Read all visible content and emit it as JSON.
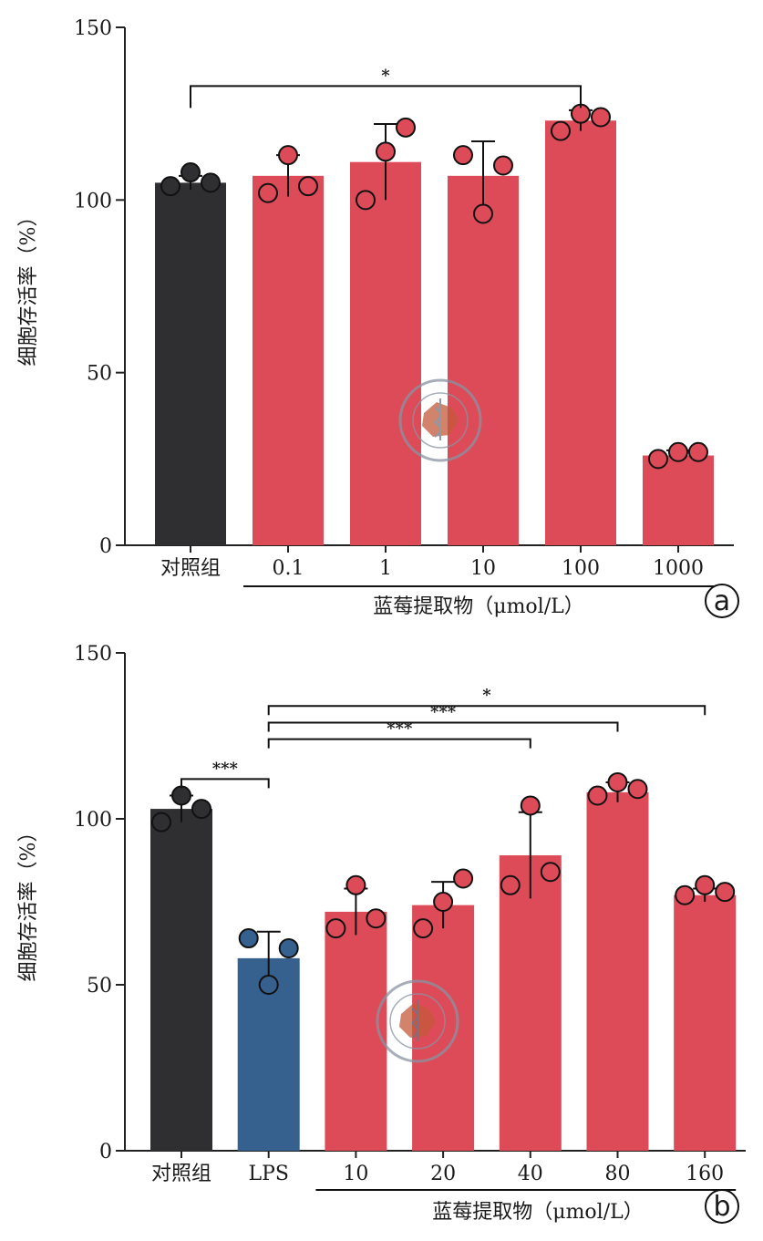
{
  "colors": {
    "control": "#2f2f31",
    "lps": "#36618f",
    "extract": "#dc4b57",
    "axis": "#222222",
    "dot_control": "#2f2f31",
    "dot_lps": "#36618f",
    "dot_extract": "#dc4b57"
  },
  "chart_data": [
    {
      "type": "bar",
      "panel_label": "a",
      "ylabel": "细胞存活率（%）",
      "ylim": [
        0,
        150
      ],
      "yticks": [
        0,
        50,
        100,
        150
      ],
      "group_label": "蓝莓提取物（μmol/L）",
      "categories": [
        "对照组",
        "0.1",
        "1",
        "10",
        "100",
        "1000"
      ],
      "values": [
        105,
        107,
        111,
        107,
        123,
        26
      ],
      "errors": [
        2,
        6,
        11,
        10,
        3,
        1.5
      ],
      "bar_colors": [
        "control",
        "extract",
        "extract",
        "extract",
        "extract",
        "extract"
      ],
      "points": [
        [
          104,
          108,
          105
        ],
        [
          102,
          113,
          104
        ],
        [
          100,
          114,
          121
        ],
        [
          113,
          96,
          110
        ],
        [
          120,
          125,
          124
        ],
        [
          25,
          27,
          27
        ]
      ],
      "significance": [
        {
          "from": 0,
          "to": 4,
          "label": "*"
        }
      ]
    },
    {
      "type": "bar",
      "panel_label": "b",
      "ylabel": "细胞存活率（%）",
      "ylim": [
        0,
        150
      ],
      "yticks": [
        0,
        50,
        100,
        150
      ],
      "group_label": "蓝莓提取物（μmol/L）",
      "categories": [
        "对照组",
        "LPS",
        "10",
        "20",
        "40",
        "80",
        "160"
      ],
      "values": [
        103,
        58,
        72,
        74,
        89,
        108,
        77
      ],
      "errors": [
        4,
        8,
        7,
        7,
        13,
        3,
        2
      ],
      "bar_colors": [
        "control",
        "lps",
        "extract",
        "extract",
        "extract",
        "extract",
        "extract"
      ],
      "points": [
        [
          99,
          107,
          103
        ],
        [
          64,
          50,
          61
        ],
        [
          67,
          80,
          70
        ],
        [
          67,
          75,
          82
        ],
        [
          80,
          104,
          84
        ],
        [
          107,
          111,
          109
        ],
        [
          77,
          80,
          78
        ]
      ],
      "significance": [
        {
          "from": 0,
          "to": 1,
          "label": "***"
        },
        {
          "from": 1,
          "to": 4,
          "label": "***"
        },
        {
          "from": 1,
          "to": 5,
          "label": "***"
        },
        {
          "from": 1,
          "to": 6,
          "label": "*"
        }
      ]
    }
  ]
}
